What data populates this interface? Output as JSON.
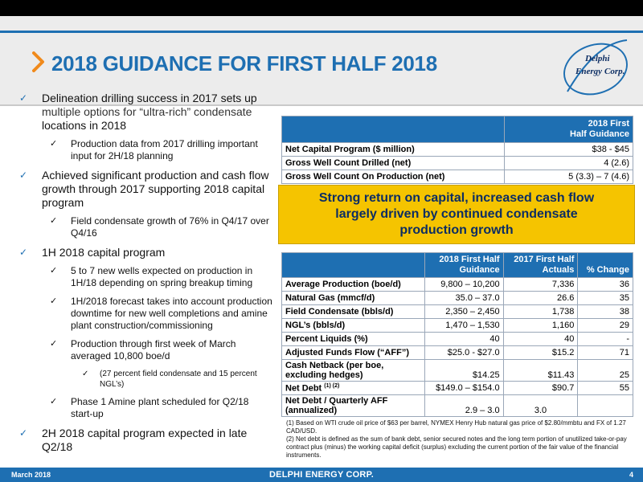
{
  "title": "2018 GUIDANCE FOR FIRST HALF 2018",
  "logo_text": [
    "Delphi",
    "Energy",
    "Corp."
  ],
  "colors": {
    "brand_blue": "#1e6fb2",
    "callout_yellow": "#f5c400",
    "callout_text": "#0c2d63",
    "chevron_orange": "#f08a1c"
  },
  "bullets": {
    "b1": {
      "a": "Delineation drilling success in 2017 sets up",
      "b": "multiple options for “ultra-rich” condensate",
      "c": "locations in 2018"
    },
    "b1_1": "Production data from 2017 drilling important input for 2H/18 planning",
    "b2": "Achieved significant production and cash flow growth through 2017 supporting 2018 capital program",
    "b2_1": "Field condensate growth of 76% in Q4/17 over Q4/16",
    "b3": "1H 2018 capital program",
    "b3_1": "5 to 7 new wells expected on production in 1H/18 depending on spring breakup timing",
    "b3_2": "1H/2018 forecast takes into account production downtime for new well completions and amine plant construction/commissioning",
    "b3_3": "Production through first week of March averaged 10,800 boe/d",
    "b3_3_1": "(27 percent field condensate and 15 percent NGL’s)",
    "b3_4": "Phase 1 Amine plant scheduled for Q2/18 start-up",
    "b4": "2H 2018 capital program expected in late Q2/18"
  },
  "table1": {
    "header_line1": "2018 First",
    "header_line2": "Half Guidance",
    "rows": [
      {
        "label": "Net Capital Program ($ million)",
        "value": "$38 - $45"
      },
      {
        "label": "Gross Well Count Drilled (net)",
        "value": "4 (2.6)"
      },
      {
        "label": "Gross Well Count On Production (net)",
        "value": "5 (3.3) – 7 (4.6)"
      }
    ]
  },
  "callout": {
    "line1": "Strong return on capital, increased cash flow",
    "line2": "largely driven by continued condensate",
    "line3": "production growth"
  },
  "table2": {
    "headers": {
      "c1a": "2018 First Half",
      "c1b": "Guidance",
      "c2a": "2017 First Half",
      "c2b": "Actuals",
      "c3": "% Change"
    },
    "rows": [
      {
        "label": "Average Production (boe/d)",
        "g": "9,800 – 10,200",
        "a": "7,336",
        "p": "36"
      },
      {
        "label": "Natural Gas (mmcf/d)",
        "g": "35.0 – 37.0",
        "a": "26.6",
        "p": "35"
      },
      {
        "label": "Field Condensate (bbls/d)",
        "g": "2,350 – 2,450",
        "a": "1,738",
        "p": "38"
      },
      {
        "label": "NGL’s (bbls/d)",
        "g": "1,470 – 1,530",
        "a": "1,160",
        "p": "29"
      },
      {
        "label": "Percent Liquids (%)",
        "g": "40",
        "a": "40",
        "p": "-"
      },
      {
        "label": "Adjusted Funds Flow (“AFF”)",
        "g": "$25.0 - $27.0",
        "a": "$15.2",
        "p": "71"
      },
      {
        "label_a": "Cash Netback (per boe,",
        "label_b": "excluding hedges)",
        "g": "$14.25",
        "a": "$11.43",
        "p": "25"
      },
      {
        "label": "Net Debt",
        "sup": "(1) (2)",
        "g": "$149.0 – $154.0",
        "a": "$90.7",
        "p": "55"
      },
      {
        "label_a": "Net Debt / Quarterly AFF",
        "label_b": "(annualized)",
        "g": "2.9 – 3.0",
        "a": "3.0",
        "p": ""
      }
    ]
  },
  "footnotes": {
    "f1": "(1) Based on WTI crude oil price of $63 per barrel, NYMEX Henry Hub natural gas price of $2.80/mmbtu and FX of 1.27 CAD/USD.",
    "f2": "(2) Net debt is defined as the sum of bank debt, senior secured notes and the long term portion of unutilized take-or-pay contract plus (minus) the working capital deficit (surplus) excluding the current portion of the fair value of the financial instruments."
  },
  "footer": {
    "date": "March 2018",
    "corp": "DELPHI ENERGY CORP.",
    "page": "4"
  }
}
